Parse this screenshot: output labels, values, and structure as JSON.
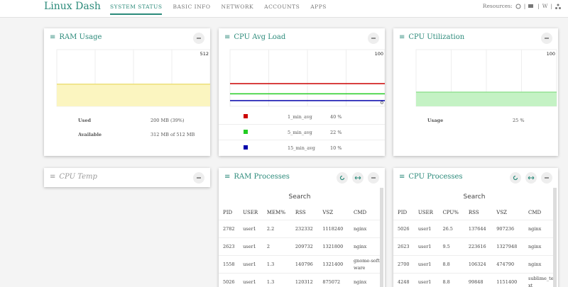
{
  "header": {
    "title": "Linux Dash",
    "nav": [
      "SYSTEM STATUS",
      "BASIC INFO",
      "NETWORK",
      "ACCOUNTS",
      "APPS"
    ],
    "resources": "Resources:",
    "wiki": "W"
  },
  "ram_usage": {
    "title": "RAM Usage",
    "chart": {
      "ylim": [
        0,
        512
      ],
      "yticks": [
        0,
        512
      ],
      "value": 200,
      "color": "#fbf5c0",
      "line": "#ece07a"
    },
    "rows": [
      [
        "Used",
        "200 MB (39%)"
      ],
      [
        "Available",
        "312 MB of 512 MB"
      ]
    ]
  },
  "cpu_avg_load": {
    "title": "CPU Avg Load",
    "chart": {
      "ylim": [
        0,
        100
      ],
      "yticks": [
        0,
        100
      ]
    },
    "rows": [
      {
        "name": "1_min_avg",
        "value": 40,
        "label": "40 %",
        "color": "#cc0000"
      },
      {
        "name": "5_min_avg",
        "value": 22,
        "label": "22 %",
        "color": "#22cc22"
      },
      {
        "name": "15_min_avg",
        "value": 10,
        "label": "10 %",
        "color": "#0000aa"
      }
    ]
  },
  "cpu_utilization": {
    "title": "CPU Utilization",
    "chart": {
      "ylim": [
        0,
        100
      ],
      "yticks": [
        0,
        100
      ],
      "color": "#c4f2c4",
      "line": "#88dd88"
    },
    "rows": [
      {
        "name": "Usage",
        "value": 25,
        "label": "25 %"
      }
    ]
  },
  "cpu_temp": {
    "title": "CPU Temp"
  },
  "ram_processes": {
    "title": "RAM Processes",
    "search": "Search",
    "columns": [
      "PID",
      "USER",
      "MEM%",
      "RSS",
      "VSZ",
      "CMD"
    ],
    "rows": [
      [
        "2782",
        "user1",
        "2.2",
        "232332",
        "1118240",
        "nginx"
      ],
      [
        "2623",
        "user1",
        "2",
        "209732",
        "1321800",
        "nginx"
      ],
      [
        "1558",
        "user1",
        "1.3",
        "140796",
        "1321400",
        "gnome-software"
      ],
      [
        "5026",
        "user1",
        "1.3",
        "120312",
        "875072",
        "nginx"
      ]
    ]
  },
  "cpu_processes": {
    "title": "CPU Processes",
    "search": "Search",
    "columns": [
      "PID",
      "USER",
      "CPU%",
      "RSS",
      "VSZ",
      "CMD"
    ],
    "rows": [
      [
        "5026",
        "user1",
        "26.5",
        "137644",
        "907236",
        "nginx"
      ],
      [
        "2623",
        "user1",
        "9.5",
        "223616",
        "1327948",
        "nginx"
      ],
      [
        "2700",
        "user1",
        "8.8",
        "106324",
        "474790",
        "nginx"
      ],
      [
        "4248",
        "user1",
        "8.8",
        "99848",
        "1151400",
        "sublime_text"
      ]
    ]
  }
}
